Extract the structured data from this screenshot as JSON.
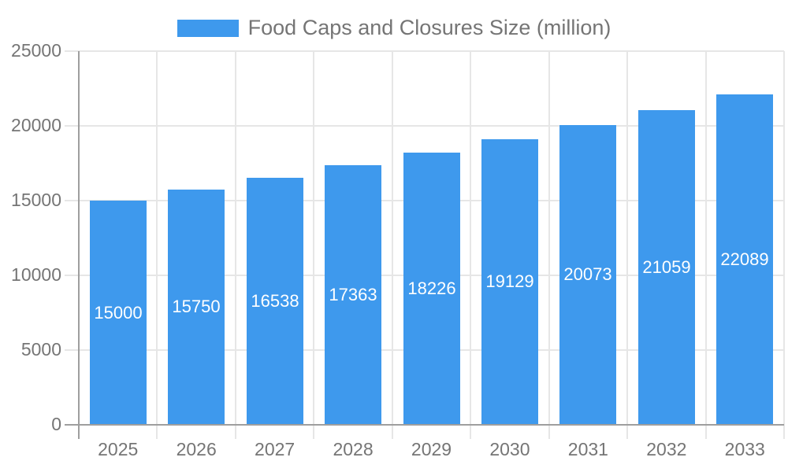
{
  "legend": {
    "label": "Food Caps and Closures Size (million)"
  },
  "chart_data": {
    "type": "bar",
    "title": "Food Caps and Closures Size (million)",
    "categories": [
      "2025",
      "2026",
      "2027",
      "2028",
      "2029",
      "2030",
      "2031",
      "2032",
      "2033"
    ],
    "values": [
      15000,
      15750,
      16538,
      17363,
      18226,
      19129,
      20073,
      21059,
      22089
    ],
    "value_labels": [
      "15000",
      "15750",
      "16538",
      "17363",
      "18226",
      "19129",
      "20073",
      "21059",
      "22089"
    ],
    "xlabel": "",
    "ylabel": "",
    "ylim": [
      0,
      25000
    ],
    "yticks": [
      0,
      5000,
      10000,
      15000,
      20000,
      25000
    ],
    "grid": true,
    "legend_position": "top-center",
    "value_label_position": "inside-center",
    "colors": {
      "bar": "#3E99ED",
      "grid": "#E6E6E6",
      "axis": "#9E9E9E",
      "text": "#757575",
      "value_label": "#FFFFFF"
    }
  }
}
